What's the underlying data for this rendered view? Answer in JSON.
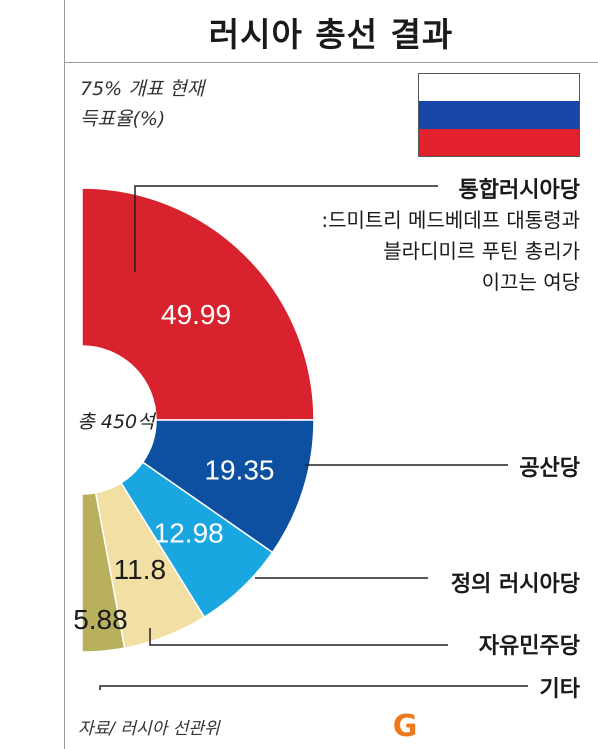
{
  "title": "러시아 총선 결과",
  "subtitle_line1": "75% 개표 현재",
  "subtitle_line2": "득표율(%)",
  "center_label": "총 450석",
  "note_lines": [
    ":드미트리 메드베데프 대통령과",
    "블라디미르 푸틴 총리가",
    "이끄는 여당"
  ],
  "source": "자료/ 러시아 선관위",
  "logo": "G",
  "flag_colors": [
    "#ffffff",
    "#1845a8",
    "#e3212d"
  ],
  "chart_data": {
    "type": "pie",
    "subtype": "half-donut",
    "categories": [
      "통합러시아당",
      "공산당",
      "정의 러시아당",
      "자유민주당",
      "기타"
    ],
    "values": [
      49.99,
      19.35,
      12.98,
      11.8,
      5.88
    ],
    "value_labels": [
      "49.99",
      "19.35",
      "12.98",
      "11.8",
      "5.88"
    ],
    "colors": [
      "#d8222e",
      "#0d4fa0",
      "#1aa6e0",
      "#f1dfa3",
      "#b8b05c"
    ]
  }
}
